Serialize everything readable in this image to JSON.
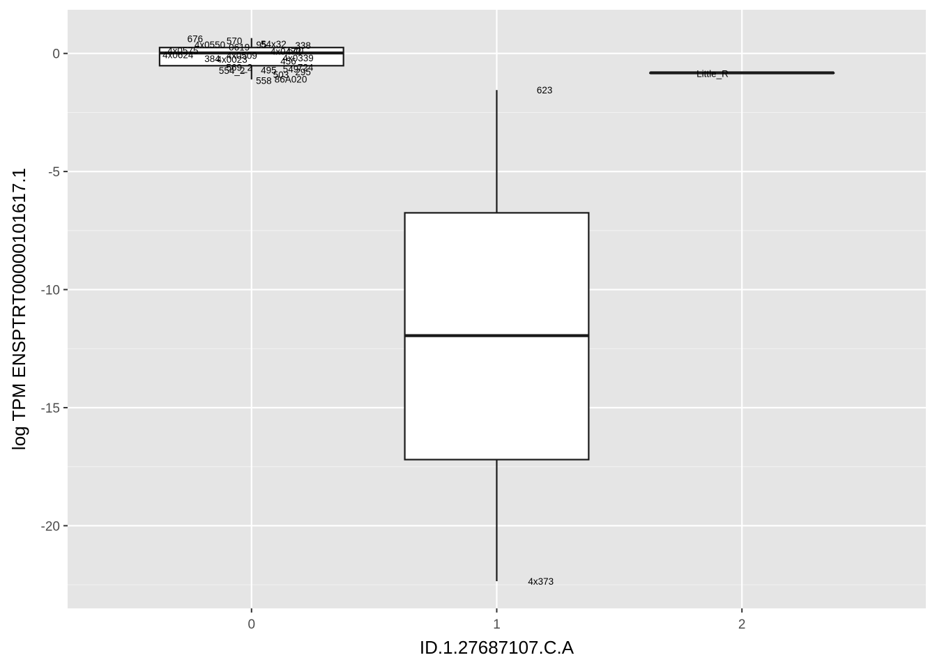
{
  "chart_data": {
    "type": "boxplot",
    "xlabel": "ID.1.27687107.C.A",
    "ylabel": "log TPM ENSPTRT00000101617.1",
    "categories": [
      "0",
      "1",
      "2"
    ],
    "xlim": [
      -0.75,
      2.75
    ],
    "ylim": [
      -23.5,
      1.85
    ],
    "y_ticks": [
      0,
      -5,
      -10,
      -15,
      -20
    ],
    "y_tick_labels": [
      "0",
      "-5",
      "-10",
      "-15",
      "-20"
    ],
    "grid": true,
    "boxes": [
      {
        "category": "0",
        "x": 0,
        "q1": -0.52,
        "median": 0.02,
        "q3": 0.25,
        "whisker_low": -1.1,
        "whisker_high": 0.65
      },
      {
        "category": "1",
        "x": 1,
        "q1": -17.2,
        "median": -11.95,
        "q3": -6.75,
        "whisker_low": -22.35,
        "whisker_high": -1.55
      },
      {
        "category": "2",
        "x": 2,
        "q1": -0.82,
        "median": -0.82,
        "q3": -0.82,
        "whisker_low": -0.82,
        "whisker_high": -0.82
      }
    ],
    "point_labels": [
      {
        "text": "676",
        "x": -0.23,
        "y": 0.62
      },
      {
        "text": "570",
        "x": -0.07,
        "y": 0.54
      },
      {
        "text": "4x0550",
        "x": -0.17,
        "y": 0.37
      },
      {
        "text": "0619",
        "x": -0.05,
        "y": 0.27
      },
      {
        "text": "4x0575",
        "x": -0.28,
        "y": 0.12
      },
      {
        "text": "4x0624",
        "x": -0.3,
        "y": -0.05
      },
      {
        "text": "384",
        "x": -0.16,
        "y": -0.22
      },
      {
        "text": "4x0023",
        "x": -0.08,
        "y": -0.25
      },
      {
        "text": "4x0509",
        "x": -0.04,
        "y": -0.08
      },
      {
        "text": "569_2",
        "x": -0.05,
        "y": -0.58
      },
      {
        "text": "554_2",
        "x": -0.08,
        "y": -0.72
      },
      {
        "text": "95",
        "x": 0.04,
        "y": 0.37
      },
      {
        "text": "54x32",
        "x": 0.09,
        "y": 0.4
      },
      {
        "text": "338",
        "x": 0.21,
        "y": 0.34
      },
      {
        "text": "540",
        "x": 0.18,
        "y": 0.12
      },
      {
        "text": "4x0472",
        "x": 0.14,
        "y": 0.1
      },
      {
        "text": "4x0339",
        "x": 0.19,
        "y": -0.18
      },
      {
        "text": "456",
        "x": 0.15,
        "y": -0.32
      },
      {
        "text": "495",
        "x": 0.07,
        "y": -0.7
      },
      {
        "text": "549",
        "x": 0.16,
        "y": -0.66
      },
      {
        "text": "724",
        "x": 0.22,
        "y": -0.58
      },
      {
        "text": "503",
        "x": 0.12,
        "y": -0.9
      },
      {
        "text": "295",
        "x": 0.21,
        "y": -0.78
      },
      {
        "text": "558",
        "x": 0.05,
        "y": -1.15
      },
      {
        "text": "86A020",
        "x": 0.16,
        "y": -1.08
      },
      {
        "text": "623",
        "x": 1.195,
        "y": -1.55
      },
      {
        "text": "4x373",
        "x": 1.18,
        "y": -22.35
      },
      {
        "text": "Little_R",
        "x": 1.88,
        "y": -0.85
      }
    ]
  }
}
